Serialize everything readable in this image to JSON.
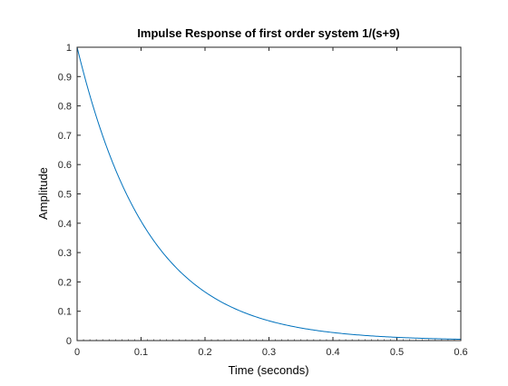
{
  "chart_data": {
    "type": "line",
    "title": "Impulse Response of first order system 1/(s+9)",
    "xlabel": "Time (seconds)",
    "ylabel": "Amplitude",
    "xlim": [
      0,
      0.6
    ],
    "ylim": [
      0,
      1
    ],
    "xticks": [
      "0",
      "0.1",
      "0.2",
      "0.3",
      "0.4",
      "0.5",
      "0.6"
    ],
    "yticks": [
      "0",
      "0.1",
      "0.2",
      "0.3",
      "0.4",
      "0.5",
      "0.6",
      "0.7",
      "0.8",
      "0.9",
      "1"
    ],
    "grid": false,
    "series": [
      {
        "color": "#0072BD",
        "x": [
          0,
          0.025,
          0.05,
          0.075,
          0.1,
          0.125,
          0.15,
          0.175,
          0.2,
          0.225,
          0.25,
          0.275,
          0.3,
          0.325,
          0.35,
          0.375,
          0.4,
          0.425,
          0.45,
          0.475,
          0.5,
          0.525,
          0.55,
          0.575,
          0.6
        ],
        "y": [
          1,
          0.798,
          0.638,
          0.509,
          0.407,
          0.325,
          0.259,
          0.207,
          0.165,
          0.132,
          0.105,
          0.084,
          0.067,
          0.054,
          0.043,
          0.034,
          0.027,
          0.022,
          0.017,
          0.014,
          0.011,
          0.009,
          0.007,
          0.006,
          0.005
        ]
      }
    ]
  }
}
